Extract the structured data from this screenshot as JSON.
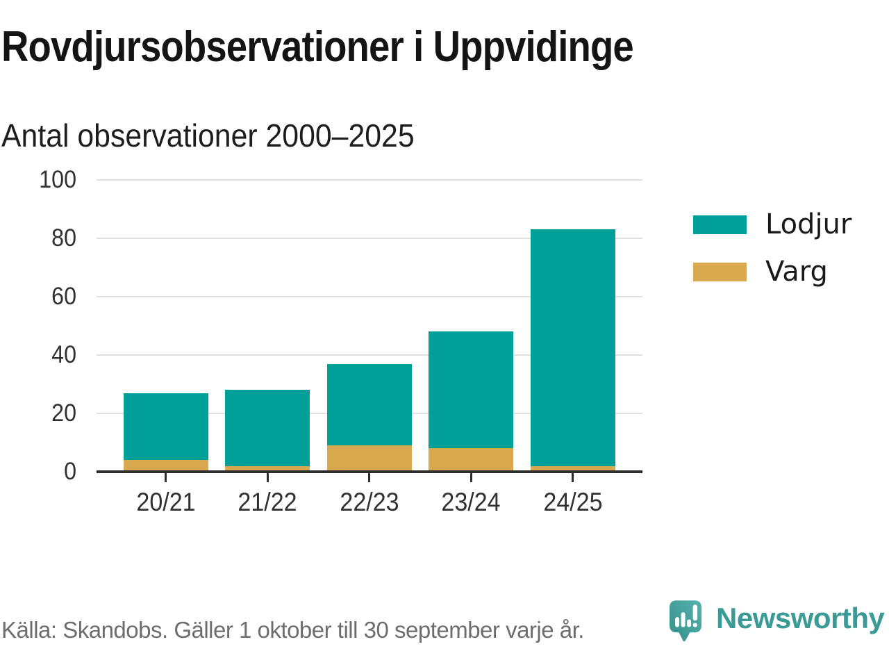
{
  "chart_data": {
    "type": "bar",
    "stacked": true,
    "title": "Rovdjursobservationer i Uppvidinge",
    "subtitle": "Antal observationer 2000–2025",
    "categories": [
      "20/21",
      "21/22",
      "22/23",
      "23/24",
      "24/25"
    ],
    "series": [
      {
        "name": "Lodjur",
        "color": "#00A099",
        "values": [
          23,
          26,
          28,
          40,
          81
        ]
      },
      {
        "name": "Varg",
        "color": "#D9A950",
        "values": [
          4,
          2,
          9,
          8,
          2
        ]
      }
    ],
    "stack_order_bottom_to_top": [
      "Varg",
      "Lodjur"
    ],
    "totals": [
      27,
      28,
      37,
      48,
      83
    ],
    "xlabel": "",
    "ylabel": "",
    "ylim": [
      0,
      100
    ],
    "yticks": [
      0,
      20,
      40,
      60,
      80,
      100
    ],
    "grid": "horizontal",
    "legend_position": "right"
  },
  "footer": {
    "source": "Källa: Skandobs. Gäller 1 oktober till 30 september varje år.",
    "brand": "Newsworthy",
    "brand_color": "#399a96"
  },
  "icons": {
    "brand_logo": "newsworthy-speech-bubble-bar-chart-icon"
  }
}
